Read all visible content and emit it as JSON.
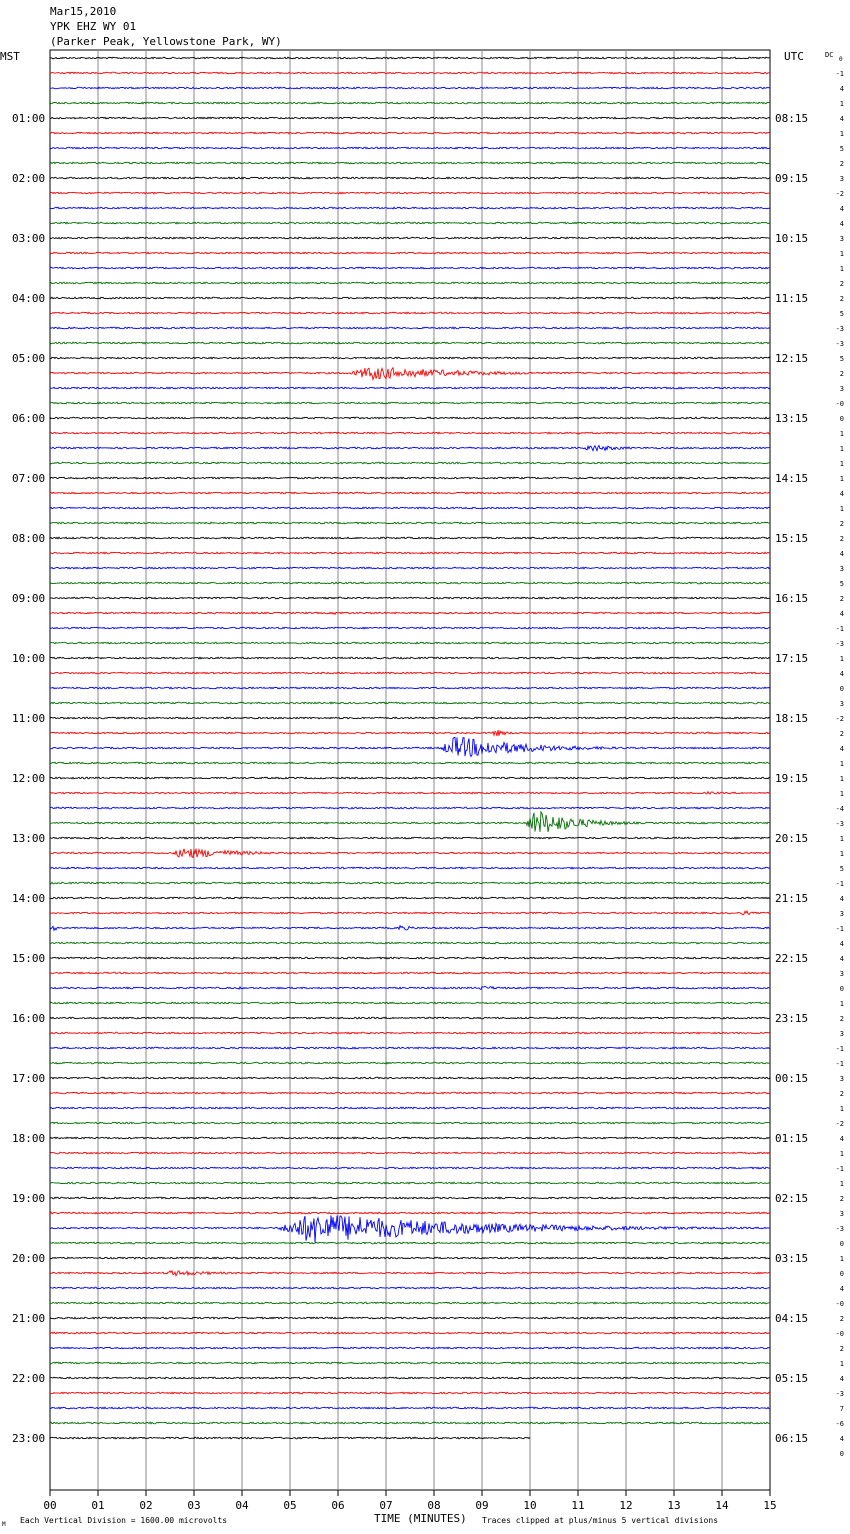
{
  "header": {
    "line1": "Mar15,2010",
    "line2": "YPK EHZ WY 01",
    "line3": "(Parker Peak, Yellowstone Park, WY)"
  },
  "labels": {
    "left_zone": "MST",
    "right_zone": "UTC",
    "dc": "DC",
    "dc_sub": "0",
    "corner_mark": "M",
    "scale_note": "Each Vertical Division = 1600.00 microvolts",
    "clip_note": "Traces clipped at plus/minus 5 vertical divisions"
  },
  "colors": [
    "#000000",
    "#ff0000",
    "#0000ff",
    "#007000"
  ],
  "chart_data": {
    "type": "line",
    "xlabel": "TIME (MINUTES)",
    "xlim": [
      0,
      15
    ],
    "x_ticks": [
      "00",
      "01",
      "02",
      "03",
      "04",
      "05",
      "06",
      "07",
      "08",
      "09",
      "10",
      "11",
      "12",
      "13",
      "14",
      "15"
    ],
    "traces_per_hour": 4,
    "hours_left": [
      "01:00",
      "02:00",
      "03:00",
      "04:00",
      "05:00",
      "06:00",
      "07:00",
      "08:00",
      "09:00",
      "10:00",
      "11:00",
      "12:00",
      "13:00",
      "14:00",
      "15:00",
      "16:00",
      "17:00",
      "18:00",
      "19:00",
      "20:00",
      "21:00",
      "22:00",
      "23:00"
    ],
    "hours_right": [
      "08:15",
      "09:15",
      "10:15",
      "11:15",
      "12:15",
      "13:15",
      "14:15",
      "15:15",
      "16:15",
      "17:15",
      "18:15",
      "19:15",
      "20:15",
      "21:15",
      "22:15",
      "23:15",
      "00:15",
      "01:15",
      "02:15",
      "03:15",
      "04:15",
      "05:15",
      "06:15"
    ],
    "dc_offsets": [
      "-1",
      "4",
      "1",
      "4",
      "1",
      "5",
      "2",
      "3",
      "-2",
      "4",
      "4",
      "3",
      "1",
      "1",
      "2",
      "2",
      "5",
      "-3",
      "-3",
      "5",
      "2",
      "3",
      "-0",
      "0",
      "1",
      "1",
      "1",
      "1",
      "4",
      "1",
      "2",
      "2",
      "4",
      "3",
      "5",
      "2",
      "4",
      "-1",
      "-3",
      "1",
      "4",
      "0",
      "3",
      "-2",
      "2",
      "4",
      "1",
      "1",
      "1",
      "-4",
      "-3",
      "1",
      "1",
      "5",
      "-1",
      "4",
      "3",
      "-1",
      "4",
      "4",
      "3",
      "0",
      "1",
      "2",
      "3",
      "-1",
      "-1",
      "3",
      "2",
      "1",
      "-2",
      "4",
      "1",
      "-1",
      "1",
      "2",
      "3",
      "-3",
      "0",
      "1",
      "0",
      "4",
      "-0",
      "2",
      "-0",
      "2",
      "1",
      "4",
      "-3",
      "7",
      "-6",
      "4",
      "0"
    ],
    "last_trace_end_minute": 10,
    "events": [
      {
        "trace": 12,
        "start": 2.6,
        "end": 3.0,
        "amp": 1.2
      },
      {
        "trace": 21,
        "start": 6.2,
        "end": 12.0,
        "amp": 7
      },
      {
        "trace": 25,
        "start": 11.0,
        "end": 11.3,
        "amp": 1.5
      },
      {
        "trace": 26,
        "start": 11.1,
        "end": 13.0,
        "amp": 4
      },
      {
        "trace": 37,
        "start": 5.8,
        "end": 7.5,
        "amp": 1.5
      },
      {
        "trace": 41,
        "start": 0.8,
        "end": 1.8,
        "amp": 1.5
      },
      {
        "trace": 44,
        "start": 10.2,
        "end": 11.0,
        "amp": 1
      },
      {
        "trace": 45,
        "start": 13.6,
        "end": 15.0,
        "amp": 1
      },
      {
        "trace": 45,
        "start": 9.2,
        "end": 10.0,
        "amp": 4
      },
      {
        "trace": 46,
        "start": 8.1,
        "end": 12.5,
        "amp": 12
      },
      {
        "trace": 49,
        "start": 13.6,
        "end": 15.0,
        "amp": 1.5
      },
      {
        "trace": 50,
        "start": 1.2,
        "end": 2.0,
        "amp": 1
      },
      {
        "trace": 50,
        "start": 7.1,
        "end": 7.6,
        "amp": 1
      },
      {
        "trace": 51,
        "start": 9.9,
        "end": 12.5,
        "amp": 14
      },
      {
        "trace": 52,
        "start": 13.0,
        "end": 14.2,
        "amp": 1
      },
      {
        "trace": 53,
        "start": 2.5,
        "end": 6.0,
        "amp": 6
      },
      {
        "trace": 54,
        "start": 2.7,
        "end": 3.2,
        "amp": 1
      },
      {
        "trace": 54,
        "start": 12.5,
        "end": 13.0,
        "amp": 1
      },
      {
        "trace": 57,
        "start": 14.4,
        "end": 15.0,
        "amp": 3
      },
      {
        "trace": 58,
        "start": 0.0,
        "end": 0.8,
        "amp": 2.5
      },
      {
        "trace": 58,
        "start": 7.2,
        "end": 8.2,
        "amp": 3
      },
      {
        "trace": 62,
        "start": 3.9,
        "end": 4.3,
        "amp": 1.5
      },
      {
        "trace": 62,
        "start": 8.8,
        "end": 11.0,
        "amp": 2
      },
      {
        "trace": 60,
        "start": 0.5,
        "end": 1.2,
        "amp": 1
      },
      {
        "trace": 60,
        "start": 9.8,
        "end": 10.6,
        "amp": 1
      },
      {
        "trace": 74,
        "start": 11.8,
        "end": 12.4,
        "amp": 1
      },
      {
        "trace": 78,
        "start": 4.7,
        "end": 14.5,
        "amp": 16
      },
      {
        "trace": 81,
        "start": 2.3,
        "end": 5.5,
        "amp": 3
      }
    ]
  }
}
